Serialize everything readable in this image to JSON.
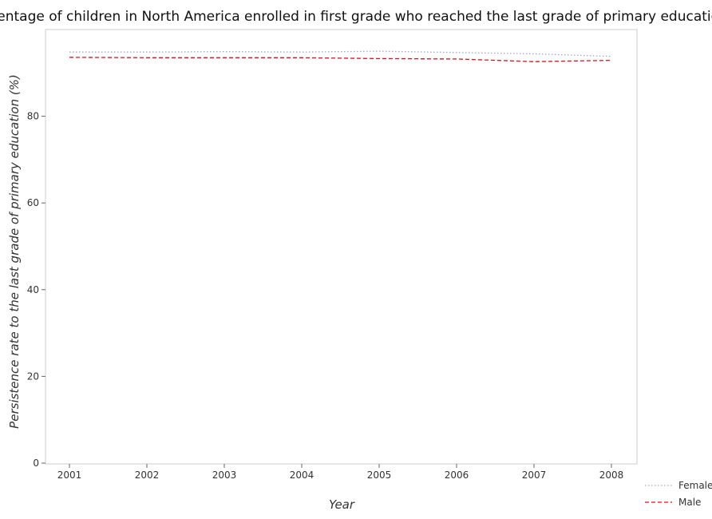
{
  "chart_data": {
    "type": "line",
    "title": "Percentage of children in North America enrolled in first grade who reached the last grade of primary education",
    "xlabel": "Year",
    "ylabel": "Persistence rate to the last grade of primary education (%)",
    "categories": [
      "2001",
      "2002",
      "2003",
      "2004",
      "2005",
      "2006",
      "2007",
      "2008"
    ],
    "ylim": [
      0,
      100
    ],
    "yticks": [
      "0",
      "20",
      "40",
      "60",
      "80"
    ],
    "series": [
      {
        "name": "Female",
        "color": "#9aaac8",
        "dash": "dotted",
        "values": [
          94.8,
          94.8,
          94.9,
          94.8,
          95.0,
          94.7,
          94.4,
          93.8
        ]
      },
      {
        "name": "Male",
        "color": "#dd1111",
        "dash": "dashed",
        "values": [
          93.6,
          93.5,
          93.5,
          93.5,
          93.3,
          93.2,
          92.6,
          92.9
        ]
      }
    ],
    "legend_position": "bottom-right",
    "grid": false
  }
}
